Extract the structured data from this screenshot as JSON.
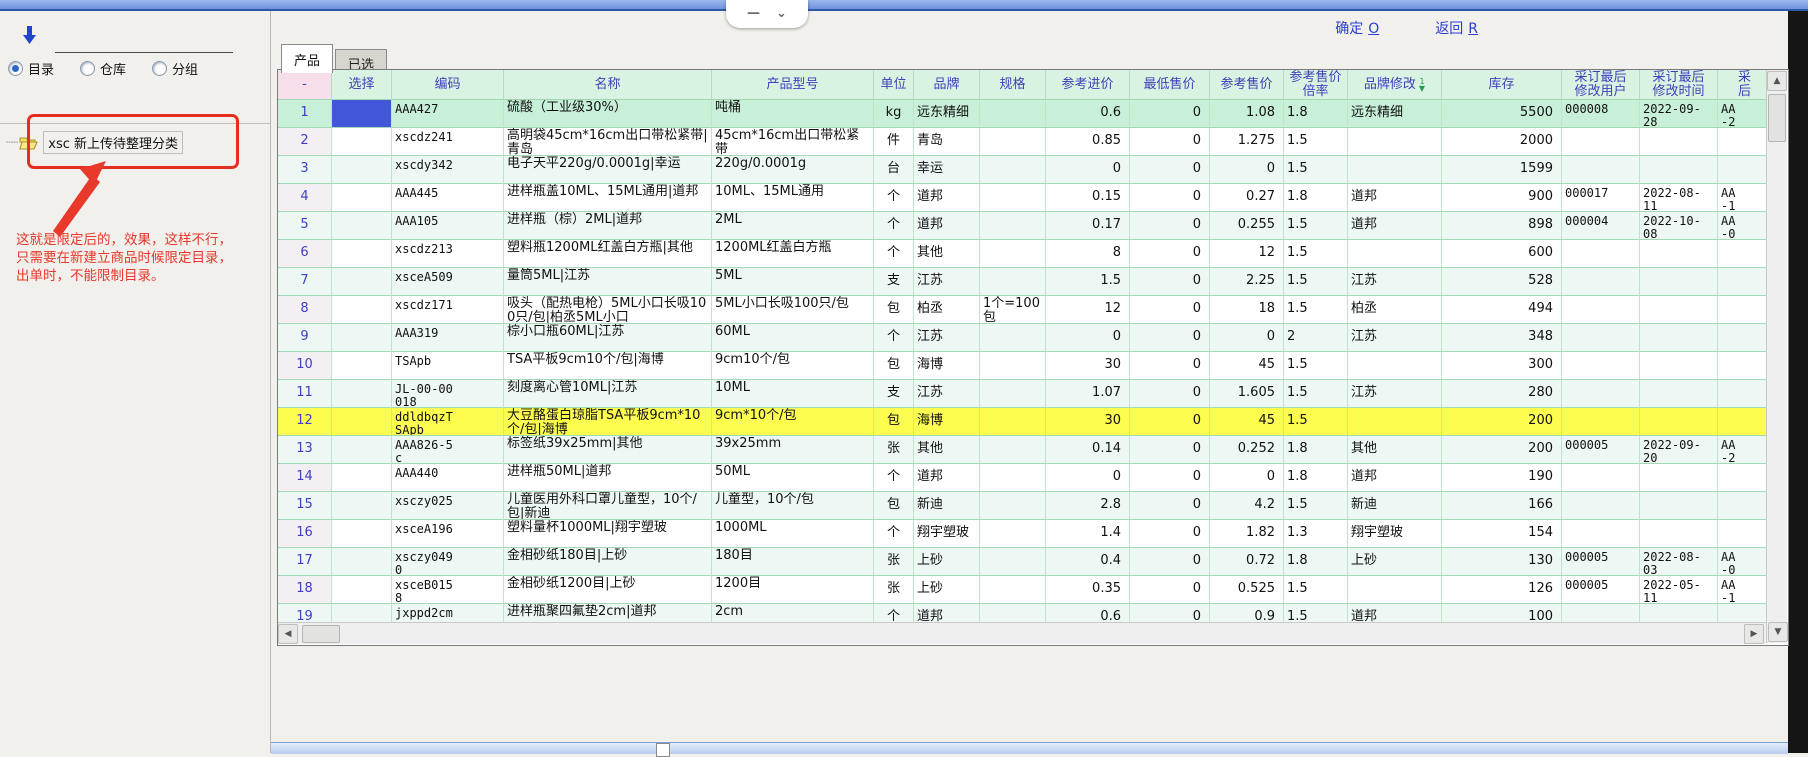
{
  "overlay": {
    "minimize": "—",
    "chevron": "⌄"
  },
  "topbar": {
    "confirm_label": "确定",
    "confirm_key": "O",
    "back_label": "返回",
    "back_key": "R"
  },
  "left_panel": {
    "radios": [
      {
        "label": "目录",
        "checked": true
      },
      {
        "label": "仓库",
        "checked": false
      },
      {
        "label": "分组",
        "checked": false
      }
    ],
    "tree_item": {
      "code": "xsc",
      "label": "新上传待整理分类",
      "connector": "┄┄"
    },
    "annotation": "这就是限定后的，效果，这样不行，\n只需要在新建立商品时候限定目录，\n出单时，不能限制目录。"
  },
  "tabs": [
    {
      "label": "产品",
      "active": true
    },
    {
      "label": "已选",
      "active": false
    }
  ],
  "table": {
    "headers": [
      "-",
      "选择",
      "编码",
      "名称",
      "产品型号",
      "单位",
      "品牌",
      "规格",
      "参考进价",
      "最低售价",
      "参考售价",
      "参考售价\n倍率",
      "品牌修改",
      "库存",
      "采订最后\n修改用户",
      "采订最后\n修改时间",
      "采\n后"
    ],
    "sort": {
      "column_index": 12,
      "badge": "1",
      "arrow": "▼"
    },
    "rows": [
      {
        "state": "selected",
        "cells": [
          "1",
          "",
          "AAA427",
          "硫酸（工业级30%）",
          "吨桶",
          "kg",
          "远东精细",
          "",
          "0.6",
          "0",
          "1.08",
          "1.8",
          "远东精细",
          "5500",
          "000008",
          "2022-09-\n28",
          "AA\n-2"
        ]
      },
      {
        "state": "",
        "cells": [
          "2",
          "",
          "xscdz241",
          "高明袋45cm*16cm出口带松紧带|青岛",
          "45cm*16cm出口带松紧带",
          "件",
          "青岛",
          "",
          "0.85",
          "0",
          "1.275",
          "1.5",
          "",
          "2000",
          "",
          "",
          ""
        ]
      },
      {
        "state": "alt",
        "cells": [
          "3",
          "",
          "xscdy342",
          "电子天平220g/0.0001g|幸运",
          "220g/0.0001g",
          "台",
          "幸运",
          "",
          "0",
          "0",
          "0",
          "1.5",
          "",
          "1599",
          "",
          "",
          ""
        ]
      },
      {
        "state": "",
        "cells": [
          "4",
          "",
          "AAA445",
          "进样瓶盖10ML、15ML通用|道邦",
          "10ML、15ML通用",
          "个",
          "道邦",
          "",
          "0.15",
          "0",
          "0.27",
          "1.8",
          "道邦",
          "900",
          "000017",
          "2022-08-\n11",
          "AA\n-1"
        ]
      },
      {
        "state": "alt",
        "cells": [
          "5",
          "",
          "AAA105",
          "进样瓶（棕）2ML|道邦",
          "2ML",
          "个",
          "道邦",
          "",
          "0.17",
          "0",
          "0.255",
          "1.5",
          "道邦",
          "898",
          "000004",
          "2022-10-\n08",
          "AA\n-0"
        ]
      },
      {
        "state": "",
        "cells": [
          "6",
          "",
          "xscdz213",
          "塑料瓶1200ML红盖白方瓶|其他",
          "1200ML红盖白方瓶",
          "个",
          "其他",
          "",
          "8",
          "0",
          "12",
          "1.5",
          "",
          "600",
          "",
          "",
          ""
        ]
      },
      {
        "state": "alt",
        "cells": [
          "7",
          "",
          "xsceA509",
          "量筒5ML|江苏",
          "5ML",
          "支",
          "江苏",
          "",
          "1.5",
          "0",
          "2.25",
          "1.5",
          "江苏",
          "528",
          "",
          "",
          ""
        ]
      },
      {
        "state": "",
        "cells": [
          "8",
          "",
          "xscdz171",
          "吸头（配热电枪）5ML小口长吸100只/包|柏丞5ML小口",
          "5ML小口长吸100只/包",
          "包",
          "柏丞",
          "1个=100包",
          "12",
          "0",
          "18",
          "1.5",
          "柏丞",
          "494",
          "",
          "",
          ""
        ]
      },
      {
        "state": "alt",
        "cells": [
          "9",
          "",
          "AAA319",
          "棕小口瓶60ML|江苏",
          "60ML",
          "个",
          "江苏",
          "",
          "0",
          "0",
          "0",
          "2",
          "江苏",
          "348",
          "",
          "",
          ""
        ]
      },
      {
        "state": "",
        "cells": [
          "10",
          "",
          "TSApb",
          "TSA平板9cm10个/包|海博",
          "9cm10个/包",
          "包",
          "海博",
          "",
          "30",
          "0",
          "45",
          "1.5",
          "",
          "300",
          "",
          "",
          ""
        ]
      },
      {
        "state": "alt",
        "cells": [
          "11",
          "",
          "JL-00-00\n018",
          "刻度离心管10ML|江苏",
          "10ML",
          "支",
          "江苏",
          "",
          "1.07",
          "0",
          "1.605",
          "1.5",
          "江苏",
          "280",
          "",
          "",
          ""
        ]
      },
      {
        "state": "yellow",
        "cells": [
          "12",
          "",
          "ddldbqzT\nSApb",
          "大豆酪蛋白琼脂TSA平板9cm*10个/包|海博",
          "9cm*10个/包",
          "包",
          "海博",
          "",
          "30",
          "0",
          "45",
          "1.5",
          "",
          "200",
          "",
          "",
          ""
        ]
      },
      {
        "state": "alt",
        "cells": [
          "13",
          "",
          "AAA826-5\nc",
          "标签纸39x25mm|其他",
          "39x25mm",
          "张",
          "其他",
          "",
          "0.14",
          "0",
          "0.252",
          "1.8",
          "其他",
          "200",
          "000005",
          "2022-09-\n20",
          "AA\n-2"
        ]
      },
      {
        "state": "",
        "cells": [
          "14",
          "",
          "AAA440",
          "进样瓶50ML|道邦",
          "50ML",
          "个",
          "道邦",
          "",
          "0",
          "0",
          "0",
          "1.8",
          "道邦",
          "190",
          "",
          "",
          ""
        ]
      },
      {
        "state": "alt",
        "cells": [
          "15",
          "",
          "xsczy025",
          "儿童医用外科口罩儿童型，10个/包|新迪",
          "儿童型，10个/包",
          "包",
          "新迪",
          "",
          "2.8",
          "0",
          "4.2",
          "1.5",
          "新迪",
          "166",
          "",
          "",
          ""
        ]
      },
      {
        "state": "",
        "cells": [
          "16",
          "",
          "xsceA196",
          "塑料量杯1000ML|翔宇塑玻",
          "1000ML",
          "个",
          "翔宇塑玻",
          "",
          "1.4",
          "0",
          "1.82",
          "1.3",
          "翔宇塑玻",
          "154",
          "",
          "",
          ""
        ]
      },
      {
        "state": "alt",
        "cells": [
          "17",
          "",
          "xsczy049\n0",
          "金相砂纸180目|上砂",
          "180目",
          "张",
          "上砂",
          "",
          "0.4",
          "0",
          "0.72",
          "1.8",
          "上砂",
          "130",
          "000005",
          "2022-08-\n03",
          "AA\n-0"
        ]
      },
      {
        "state": "",
        "cells": [
          "18",
          "",
          "xsceB015\n8",
          "金相砂纸1200目|上砂",
          "1200目",
          "张",
          "上砂",
          "",
          "0.35",
          "0",
          "0.525",
          "1.5",
          "",
          "126",
          "000005",
          "2022-05-\n11",
          "AA\n-1"
        ]
      },
      {
        "state": "alt",
        "cells": [
          "19",
          "",
          "jxppd2cm",
          "进样瓶聚四氟垫2cm|道邦",
          "2cm",
          "个",
          "道邦",
          "",
          "0.6",
          "0",
          "0.9",
          "1.5",
          "道邦",
          "100",
          "",
          "",
          ""
        ]
      }
    ]
  },
  "colors": {
    "accent_blue": "#2b3fd0",
    "header_green": "#d9f3e3",
    "header_pink": "#f6dfeb",
    "selected_row": "#c8efd8",
    "selected_cell": "#4156d8",
    "highlight_yellow": "#fdfd4f",
    "annotation_red": "#e8392b",
    "titlebar_blue": "#6f92dd"
  }
}
